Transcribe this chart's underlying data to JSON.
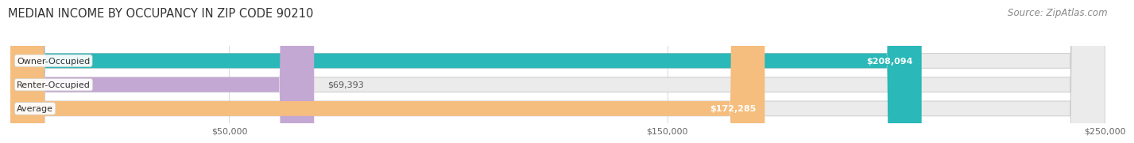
{
  "title": "MEDIAN INCOME BY OCCUPANCY IN ZIP CODE 90210",
  "source": "Source: ZipAtlas.com",
  "categories": [
    "Owner-Occupied",
    "Renter-Occupied",
    "Average"
  ],
  "values": [
    208094,
    69393,
    172285
  ],
  "labels": [
    "$208,094",
    "$69,393",
    "$172,285"
  ],
  "bar_colors": [
    "#2ab8b8",
    "#c4a8d4",
    "#f5be7e"
  ],
  "bar_bg_color": "#ebebeb",
  "xlim": [
    0,
    250000
  ],
  "xticks": [
    50000,
    150000,
    250000
  ],
  "xtick_labels": [
    "$50,000",
    "$150,000",
    "$250,000"
  ],
  "title_fontsize": 10.5,
  "source_fontsize": 8.5,
  "cat_fontsize": 8,
  "val_fontsize": 8,
  "tick_fontsize": 8,
  "bar_height": 0.62,
  "background_color": "#ffffff",
  "grid_color": "#d8d8d8"
}
